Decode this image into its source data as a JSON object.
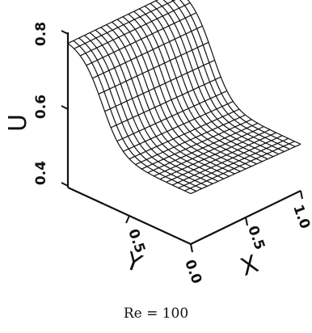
{
  "chart_data": {
    "type": "surface",
    "title": "Re = 100",
    "zlabel": "U",
    "xlabel": "X",
    "ylabel": "Y",
    "zlim": [
      0.4,
      0.8
    ],
    "xlim": [
      0.0,
      1.0
    ],
    "ylim": [
      0.0,
      1.0
    ],
    "z_ticks": [
      "0.4",
      "0.6",
      "0.8"
    ],
    "x_ticks": [
      "0.0",
      "0.5",
      "1.0"
    ],
    "y_ticks": [
      "0.5"
    ],
    "grid": false,
    "surface_model": {
      "description": "U decreases along Y from about 0.78 at Y=1 to about 0.53 at Y=0; nearly constant along X",
      "u_at_y1": 0.78,
      "u_at_y0": 0.53,
      "mesh_lines_x": 20,
      "mesh_lines_y": 20
    }
  }
}
